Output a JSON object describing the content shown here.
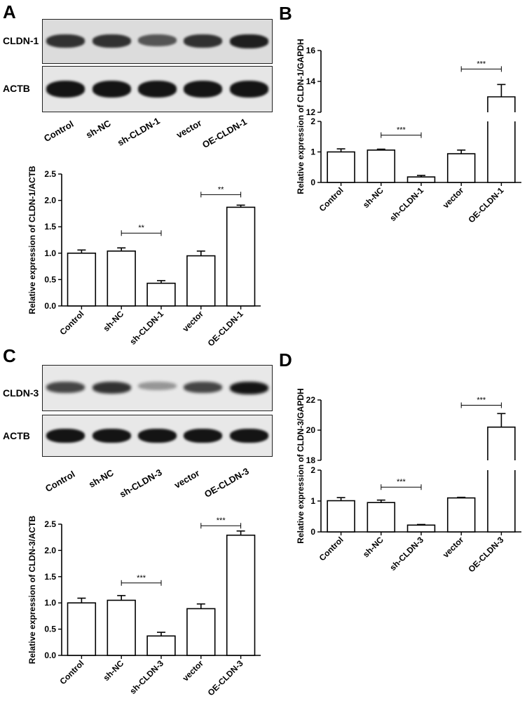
{
  "panels": {
    "a": {
      "letter": "A",
      "blots": [
        {
          "label": "CLDN-1",
          "intensities": [
            0.85,
            0.85,
            0.65,
            0.85,
            0.95
          ]
        },
        {
          "label": "ACTB",
          "intensities": [
            1,
            1,
            1,
            1,
            1
          ]
        }
      ],
      "lanes": [
        "Control",
        "sh-NC",
        "sh-CLDN-1",
        "vector",
        "OE-CLDN-1"
      ]
    },
    "b": {
      "letter": "B"
    },
    "c": {
      "letter": "C",
      "blots": [
        {
          "label": "CLDN-3",
          "intensities": [
            0.75,
            0.85,
            0.25,
            0.75,
            1
          ]
        },
        {
          "label": "ACTB",
          "intensities": [
            1,
            1,
            1,
            1,
            1
          ]
        }
      ],
      "lanes": [
        "Control",
        "sh-NC",
        "sh-CLDN-3",
        "vector",
        "OE-CLDN-3"
      ]
    },
    "d": {
      "letter": "D"
    }
  },
  "chart_data": [
    {
      "id": "a",
      "type": "bar",
      "ylabel": "Relative expression of CLDN-1/ACTB",
      "categories": [
        "Control",
        "sh-NC",
        "sh-CLDN-1",
        "vector",
        "OE-CLDN-1"
      ],
      "values": [
        1.0,
        1.04,
        0.43,
        0.95,
        1.87
      ],
      "errors": [
        0.06,
        0.06,
        0.05,
        0.09,
        0.04
      ],
      "ylim": [
        0,
        2.5
      ],
      "yticks": [
        "0.0",
        "0.5",
        "1.0",
        "1.5",
        "2.0",
        "2.5"
      ],
      "significance": [
        {
          "from": 1,
          "to": 2,
          "label": "**",
          "y": 1.38
        },
        {
          "from": 3,
          "to": 4,
          "label": "**",
          "y": 2.11
        }
      ]
    },
    {
      "id": "b",
      "type": "bar",
      "ylabel": "Relative expression of CLDN-1/GAPDH",
      "categories": [
        "Control",
        "sh-NC",
        "sh-CLDN-1",
        "vector",
        "OE-CLDN-1"
      ],
      "values": [
        1.0,
        1.06,
        0.18,
        0.94,
        13.0
      ],
      "errors": [
        0.1,
        0.03,
        0.05,
        0.12,
        0.8
      ],
      "axis_break": {
        "lower": [
          0,
          2
        ],
        "upper": [
          12,
          16
        ]
      },
      "yticks_lower": [
        "0",
        "1",
        "2"
      ],
      "yticks_upper": [
        "12",
        "14",
        "16"
      ],
      "significance": [
        {
          "from": 1,
          "to": 2,
          "label": "***",
          "y": 1.55
        },
        {
          "from": 3,
          "to": 4,
          "label": "***",
          "y": 14.8
        }
      ]
    },
    {
      "id": "c",
      "type": "bar",
      "ylabel": "Relative expression of CLDN-3/ACTB",
      "categories": [
        "Control",
        "sh-NC",
        "sh-CLDN-3",
        "vector",
        "OE-CLDN-3"
      ],
      "values": [
        1.0,
        1.05,
        0.37,
        0.89,
        2.29
      ],
      "errors": [
        0.09,
        0.09,
        0.07,
        0.09,
        0.08
      ],
      "ylim": [
        0,
        2.5
      ],
      "yticks": [
        "0.0",
        "0.5",
        "1.0",
        "1.5",
        "2.0",
        "2.5"
      ],
      "significance": [
        {
          "from": 1,
          "to": 2,
          "label": "***",
          "y": 1.38
        },
        {
          "from": 3,
          "to": 4,
          "label": "***",
          "y": 2.47
        }
      ]
    },
    {
      "id": "d",
      "type": "bar",
      "ylabel": "Relative expression of CLDN-3/GAPDH",
      "categories": [
        "Control",
        "sh-NC",
        "sh-CLDN-3",
        "vector",
        "OE-CLDN-3"
      ],
      "values": [
        1.01,
        0.95,
        0.22,
        1.1,
        20.2
      ],
      "errors": [
        0.1,
        0.08,
        0.02,
        0.02,
        0.9
      ],
      "axis_break": {
        "lower": [
          0,
          2
        ],
        "upper": [
          18,
          22
        ]
      },
      "yticks_lower": [
        "0",
        "1",
        "2"
      ],
      "yticks_upper": [
        "18",
        "20",
        "22"
      ],
      "significance": [
        {
          "from": 1,
          "to": 2,
          "label": "***",
          "y": 1.45
        },
        {
          "from": 3,
          "to": 4,
          "label": "***",
          "y": 21.65
        }
      ]
    }
  ]
}
